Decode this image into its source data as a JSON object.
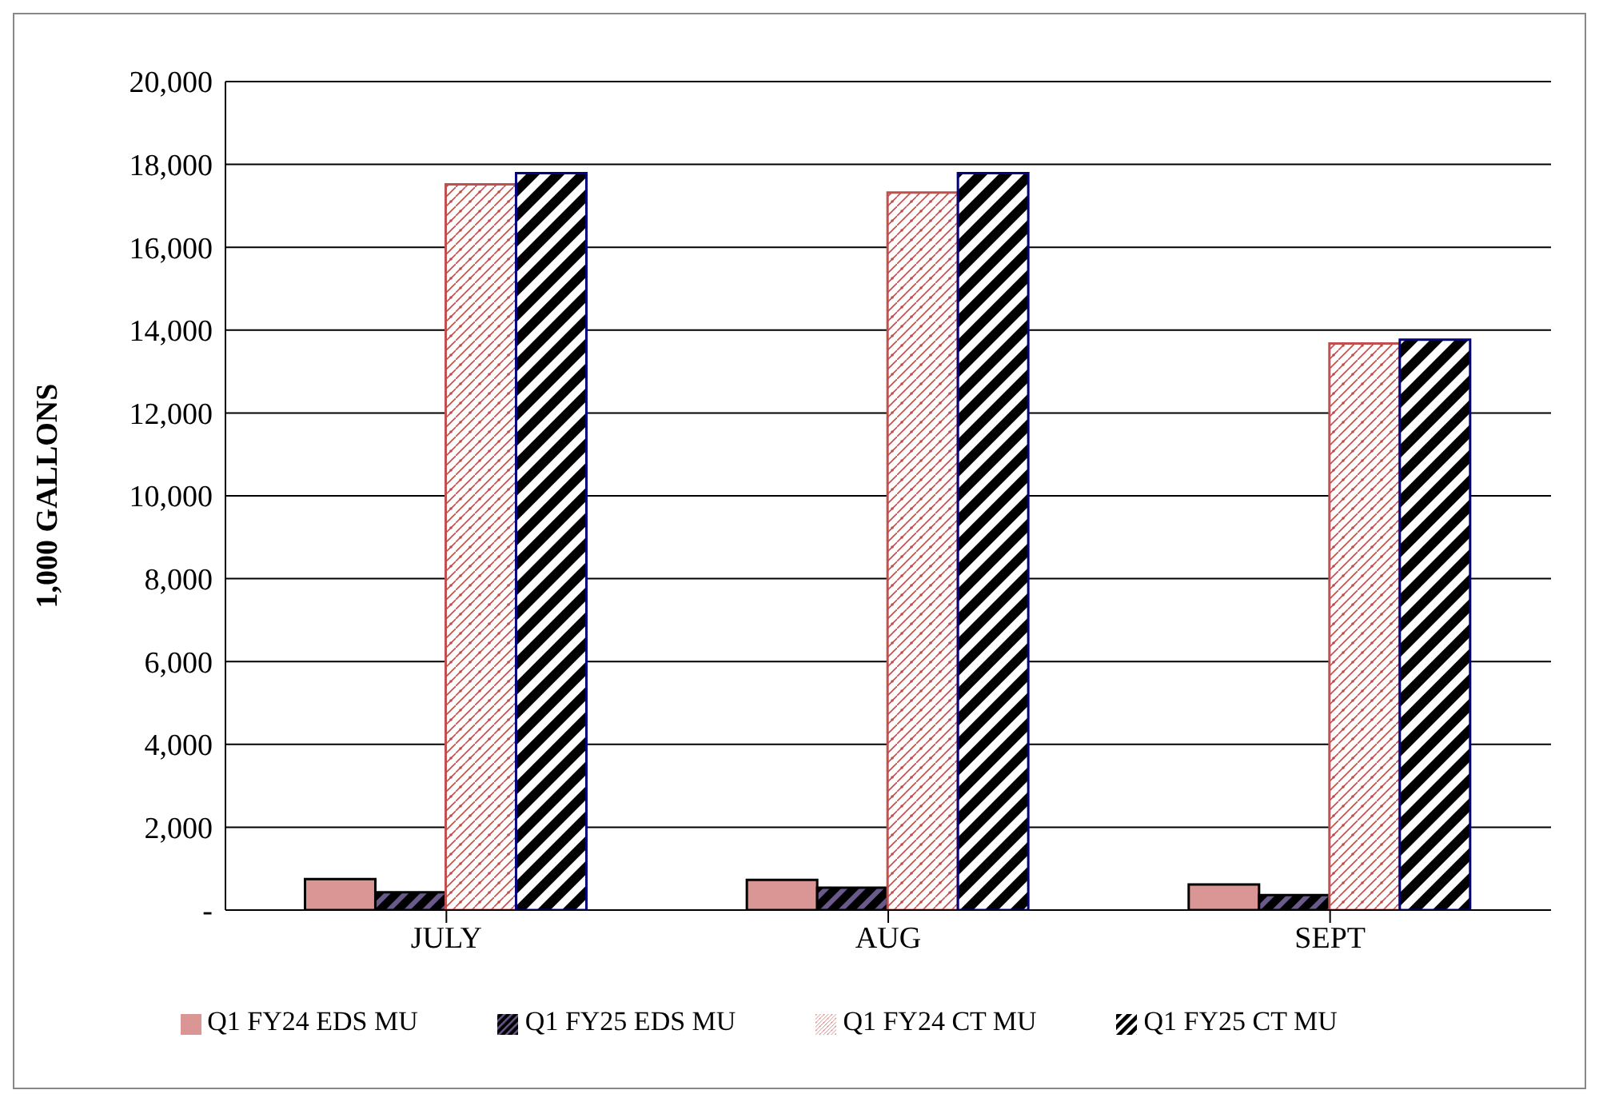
{
  "chart_data": {
    "type": "bar",
    "ylabel": "1,000 GALLONS",
    "categories": [
      "JULY",
      "AUG",
      "SEPT"
    ],
    "series": [
      {
        "name": "Q1 FY24 EDS MU",
        "color": "#d99694",
        "values": [
          750,
          730,
          620
        ]
      },
      {
        "name": "Q1 FY25 EDS MU",
        "color": "#000000",
        "values": [
          430,
          540,
          360
        ]
      },
      {
        "name": "Q1 FY24 CT MU",
        "color": "#c0504d",
        "values": [
          17520,
          17320,
          13680
        ]
      },
      {
        "name": "Q1 FY25 CT MU",
        "color": "#000080",
        "values": [
          17790,
          17790,
          13770
        ]
      }
    ],
    "ylim": [
      0,
      20000
    ],
    "yticks": [
      {
        "value": 0,
        "label": "-"
      },
      {
        "value": 2000,
        "label": "2,000"
      },
      {
        "value": 4000,
        "label": "4,000"
      },
      {
        "value": 6000,
        "label": "6,000"
      },
      {
        "value": 8000,
        "label": "8,000"
      },
      {
        "value": 10000,
        "label": "10,000"
      },
      {
        "value": 12000,
        "label": "12,000"
      },
      {
        "value": 14000,
        "label": "14,000"
      },
      {
        "value": 16000,
        "label": "16,000"
      },
      {
        "value": 18000,
        "label": "18,000"
      },
      {
        "value": 20000,
        "label": "20,000"
      }
    ],
    "grid": "y",
    "legend": "bottom"
  }
}
